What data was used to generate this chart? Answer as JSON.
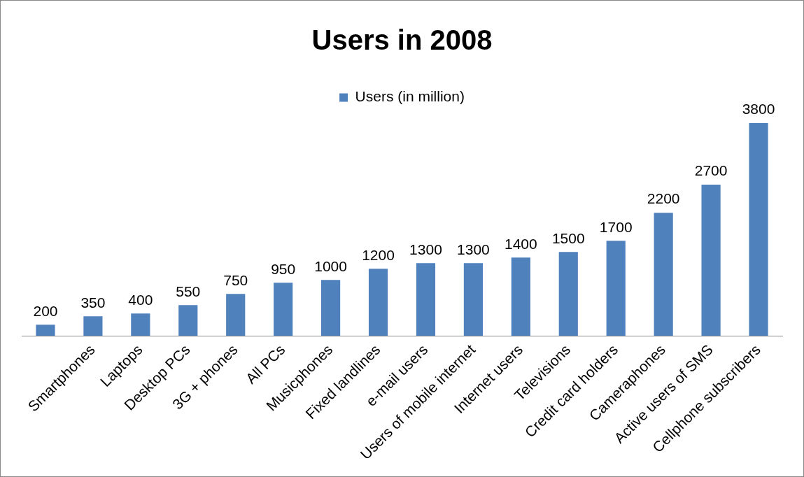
{
  "chart_data": {
    "type": "bar",
    "title": "Users in 2008",
    "categories": [
      null,
      "Smartphones",
      "Laptops",
      "Desktop PCs",
      "3G + phones",
      "All PCs",
      "Musicphones",
      "Fixed landlines",
      "e-mail users",
      "Users of mobile internet",
      "Internet users",
      "Televisions",
      "Credit card holders",
      "Cameraphones",
      "Active users of SMS",
      "Cellphone subscribers"
    ],
    "series": [
      {
        "name": "Users (in million)",
        "color": "#4f81bd",
        "values": [
          200,
          350,
          400,
          550,
          750,
          950,
          1000,
          1200,
          1300,
          1300,
          1400,
          1500,
          1700,
          2200,
          2700,
          3800
        ]
      }
    ],
    "data_labels": true,
    "legend": "top",
    "grid": false
  }
}
